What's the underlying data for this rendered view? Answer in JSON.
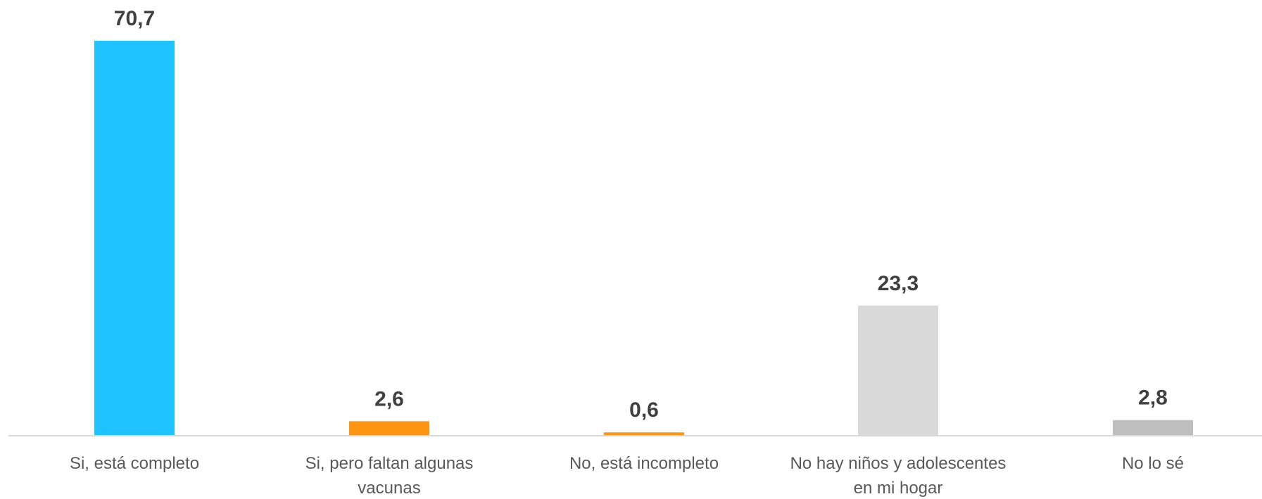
{
  "chart_data": {
    "type": "bar",
    "categories": [
      [
        "Si, está completo"
      ],
      [
        "Si, pero faltan algunas",
        "vacunas"
      ],
      [
        "No, está incompleto"
      ],
      [
        "No hay niños y adolescentes",
        "en mi hogar"
      ],
      [
        "No lo sé"
      ]
    ],
    "values": [
      70.7,
      2.6,
      0.6,
      23.3,
      2.8
    ],
    "value_labels": [
      "70,7",
      "2,6",
      "0,6",
      "23,3",
      "2,8"
    ],
    "colors": [
      "#1EC3FF",
      "#FF9410",
      "#FF9410",
      "#D9D9D9",
      "#BFBFBF"
    ],
    "title": "",
    "xlabel": "",
    "ylabel": "",
    "ylim": [
      0,
      70.7
    ],
    "grid": false,
    "legend": "none",
    "baseline_color": "#D9D9D9"
  }
}
